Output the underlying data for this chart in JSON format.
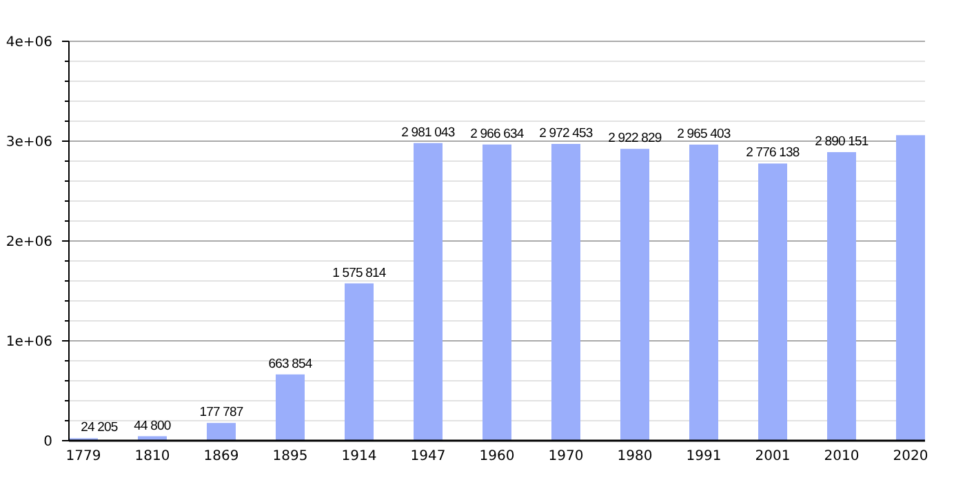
{
  "chart_data": {
    "type": "bar",
    "categories": [
      "1779",
      "1810",
      "1869",
      "1895",
      "1914",
      "1947",
      "1960",
      "1970",
      "1980",
      "1991",
      "2001",
      "2010",
      "2020"
    ],
    "values": [
      24205,
      44800,
      177787,
      663854,
      1575814,
      2981043,
      2966634,
      2972453,
      2922829,
      2965403,
      2776138,
      2890151,
      3060000
    ],
    "value_labels": [
      "24 205",
      "44 800",
      "177 787",
      "663 854",
      "1 575 814",
      "2 981 043",
      "2 966 634",
      "2 972 453",
      "2 922 829",
      "2 965 403",
      "2 776 138",
      "2 890 151",
      null
    ],
    "color": "#9aaefb",
    "ylim": [
      0,
      4000000
    ],
    "yticks": [
      0,
      {
        "value": 200000,
        "label": null
      },
      {
        "value": 400000,
        "label": null
      },
      {
        "value": 600000,
        "label": null
      },
      {
        "value": 800000,
        "label": null
      },
      {
        "value": 1000000,
        "label": "1e+06"
      },
      {
        "value": 1200000,
        "label": null
      },
      {
        "value": 1400000,
        "label": null
      },
      {
        "value": 1600000,
        "label": null
      },
      {
        "value": 1800000,
        "label": null
      },
      {
        "value": 2000000,
        "label": "2e+06"
      },
      {
        "value": 2200000,
        "label": null
      },
      {
        "value": 2400000,
        "label": null
      },
      {
        "value": 2600000,
        "label": null
      },
      {
        "value": 2800000,
        "label": null
      },
      {
        "value": 3000000,
        "label": "3e+06"
      },
      {
        "value": 3200000,
        "label": null
      },
      {
        "value": 3400000,
        "label": null
      },
      {
        "value": 3600000,
        "label": null
      },
      {
        "value": 3800000,
        "label": null
      },
      {
        "value": 4000000,
        "label": "4e+06"
      }
    ],
    "grid": true
  }
}
